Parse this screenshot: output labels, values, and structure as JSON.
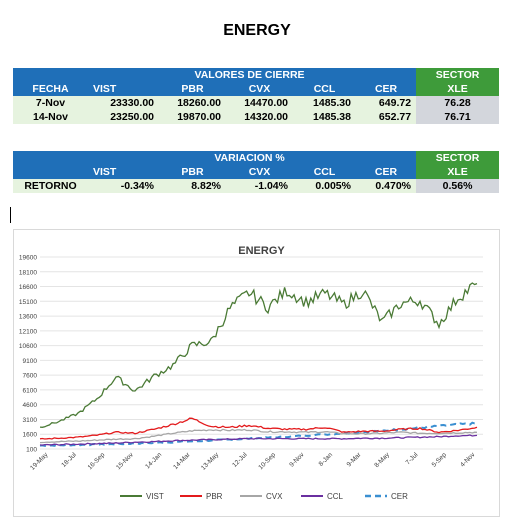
{
  "page_title": "ENERGY",
  "table1": {
    "header_title": "VALORES DE CIERRE",
    "sector_header": "SECTOR",
    "columns": [
      "FECHA",
      "VIST",
      "PBR",
      "CVX",
      "CCL",
      "CER",
      "XLE"
    ],
    "rows": [
      [
        "7-Nov",
        "23330.00",
        "18260.00",
        "14470.00",
        "1485.30",
        "649.72",
        "76.28"
      ],
      [
        "14-Nov",
        "23250.00",
        "19870.00",
        "14320.00",
        "1485.38",
        "652.77",
        "76.71"
      ]
    ]
  },
  "table2": {
    "header_title": "VARIACION %",
    "sector_header": "SECTOR",
    "columns": [
      "",
      "VIST",
      "PBR",
      "CVX",
      "CCL",
      "CER",
      "XLE"
    ],
    "rows": [
      [
        "RETORNO",
        "-0.34%",
        "8.82%",
        "-1.04%",
        "0.005%",
        "0.470%",
        "0.56%"
      ]
    ]
  },
  "chart_data": {
    "type": "line",
    "title": "ENERGY",
    "ylim": [
      100,
      19600
    ],
    "y_ticks": [
      "19600",
      "18100",
      "16600",
      "15100",
      "13600",
      "12100",
      "10600",
      "9100",
      "7600",
      "6100",
      "4600",
      "3100",
      "1600",
      "100"
    ],
    "x_ticks": [
      "19-May",
      "18-Jul",
      "16-Sep",
      "15-Nov",
      "14-Jan",
      "14-Mar",
      "13-May",
      "12-Jul",
      "10-Sep",
      "9-Nov",
      "8-Jan",
      "9-Mar",
      "8-May",
      "7-Jul",
      "5-Sep",
      "4-Nov"
    ],
    "grid": true,
    "legend_position": "bottom",
    "series": [
      {
        "name": "VIST",
        "color": "#4a7a35",
        "dash": "solid",
        "values": [
          2300,
          2900,
          3700,
          5200,
          7400,
          6000,
          7500,
          8600,
          10600,
          11000,
          14400,
          16000,
          14500,
          16200,
          15000,
          15900,
          14800,
          16200,
          13000,
          14900,
          15200,
          12800,
          15500,
          16900
        ]
      },
      {
        "name": "PBR",
        "color": "#e31a1c",
        "dash": "solid",
        "values": [
          1100,
          1200,
          1300,
          1500,
          1800,
          1700,
          2100,
          2600,
          3200,
          2400,
          2300,
          2500,
          2200,
          2100,
          2100,
          2300,
          1800,
          1900,
          1900,
          2100,
          2200,
          1800,
          2000,
          2300
        ]
      },
      {
        "name": "CVX",
        "color": "#a6a6a6",
        "dash": "solid",
        "values": [
          800,
          850,
          900,
          1000,
          1100,
          1150,
          1400,
          1700,
          1950,
          2050,
          2000,
          2050,
          1850,
          1850,
          1800,
          1850,
          1650,
          1650,
          1700,
          1800,
          1700,
          1700,
          1750,
          1800
        ]
      },
      {
        "name": "CCL",
        "color": "#6a2fa0",
        "dash": "solid",
        "values": [
          500,
          550,
          600,
          650,
          700,
          800,
          850,
          950,
          1000,
          1050,
          1100,
          1150,
          1150,
          1150,
          1150,
          1150,
          1150,
          1200,
          1200,
          1250,
          1300,
          1350,
          1450,
          1480
        ]
      },
      {
        "name": "CER",
        "color": "#3a8fd1",
        "dash": "dash",
        "values": [
          450,
          480,
          520,
          560,
          600,
          660,
          720,
          800,
          880,
          970,
          1060,
          1150,
          1250,
          1360,
          1470,
          1580,
          1700,
          1820,
          1950,
          2100,
          2250,
          2420,
          2580,
          2700
        ]
      }
    ]
  }
}
